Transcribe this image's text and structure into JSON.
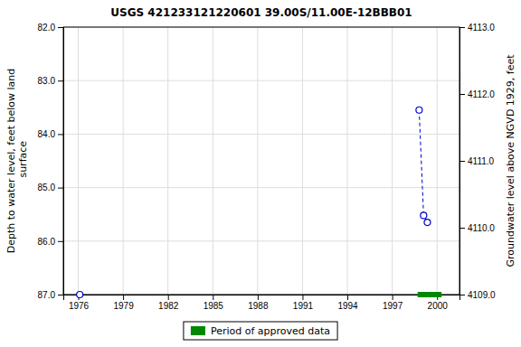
{
  "chart_data": {
    "type": "line",
    "title": "USGS 421233121220601 39.00S/11.00E-12BBB01",
    "ylabel": "Depth to water level, feet below land\n surface",
    "y2label": "Groundwater level above NGVD 1929, feet",
    "xlim": [
      1975.0,
      2001.5
    ],
    "ylim": [
      87.0,
      82.0
    ],
    "y2lim": [
      4109.0,
      4113.0
    ],
    "xticks": [
      1976,
      1979,
      1982,
      1985,
      1988,
      1991,
      1994,
      1997,
      2000
    ],
    "yticks": [
      {
        "value": 82.0,
        "label": "82.0"
      },
      {
        "value": 83.0,
        "label": "83.0"
      },
      {
        "value": 84.0,
        "label": "84.0"
      },
      {
        "value": 85.0,
        "label": "85.0"
      },
      {
        "value": 86.0,
        "label": "86.0"
      },
      {
        "value": 87.0,
        "label": "87.0"
      }
    ],
    "y2ticks": [
      {
        "value": 4109.0,
        "label": "4109.0"
      },
      {
        "value": 4110.0,
        "label": "4110.0"
      },
      {
        "value": 4111.0,
        "label": "4111.0"
      },
      {
        "value": 4112.0,
        "label": "4112.0"
      },
      {
        "value": 4113.0,
        "label": "4113.0"
      }
    ],
    "grid": true,
    "legend": "bottom",
    "series": [
      {
        "type": "line",
        "x": [
          1998.8,
          1999.1,
          1999.35
        ],
        "values": [
          83.55,
          85.52,
          85.65
        ],
        "color": "#0000cc",
        "line_style": "dashed",
        "marker": "circle"
      },
      {
        "type": "scatter",
        "x": [
          1976.1
        ],
        "values": [
          87.0
        ],
        "color": "#0000cc",
        "marker": "circle"
      },
      {
        "type": "span",
        "name": "Period of approved data",
        "x": [
          1998.7,
          2000.3
        ],
        "values": [
          87.0,
          87.0
        ],
        "color": "#008800"
      }
    ]
  }
}
